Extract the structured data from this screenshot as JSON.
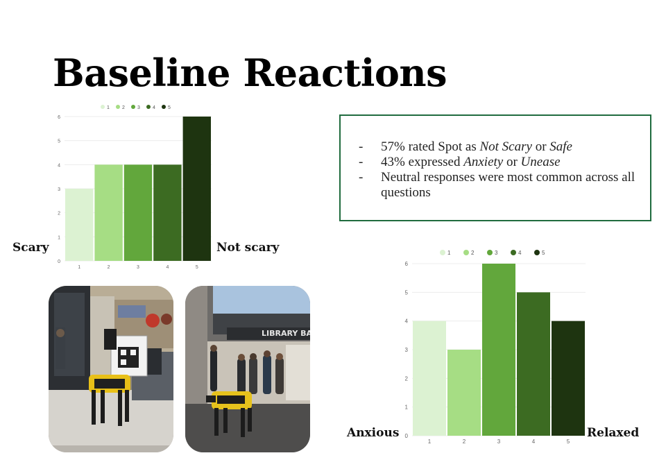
{
  "slide": {
    "title": "Baseline Reactions"
  },
  "chart_data": [
    {
      "type": "bar",
      "categories": [
        "1",
        "2",
        "3",
        "4",
        "5"
      ],
      "values": [
        3,
        4,
        4,
        4,
        6
      ],
      "legend": [
        "1",
        "2",
        "3",
        "4",
        "5"
      ],
      "legend_position": "top-center",
      "ylim": [
        0,
        6
      ],
      "yticks": [
        0,
        1,
        2,
        3,
        4,
        5,
        6
      ],
      "grid": true,
      "colors": [
        "#dcf2d2",
        "#a6dd84",
        "#62a73c",
        "#3c6b22",
        "#1e3410"
      ],
      "low_end_label": "Scary",
      "high_end_label": "Not scary"
    },
    {
      "type": "bar",
      "categories": [
        "1",
        "2",
        "3",
        "4",
        "5"
      ],
      "values": [
        4,
        3,
        6,
        5,
        4
      ],
      "legend": [
        "1",
        "2",
        "3",
        "4",
        "5"
      ],
      "legend_position": "top-center",
      "ylim": [
        0,
        6
      ],
      "yticks": [
        0,
        1,
        2,
        3,
        4,
        5,
        6
      ],
      "grid": true,
      "colors": [
        "#dcf2d2",
        "#a6dd84",
        "#62a73c",
        "#3c6b22",
        "#1e3410"
      ],
      "low_end_label": "Anxious",
      "high_end_label": "Relaxed"
    }
  ],
  "summary": {
    "border_color": "#1f6b3e",
    "bullets": [
      {
        "dash": "-",
        "parts": [
          {
            "text": "57% rated Spot as "
          },
          {
            "text": "Not Scary",
            "italic": true
          },
          {
            "text": " or "
          },
          {
            "text": "Safe",
            "italic": true
          }
        ]
      },
      {
        "dash": "-",
        "parts": [
          {
            "text": "43% expressed "
          },
          {
            "text": "Anxiety",
            "italic": true
          },
          {
            "text": " or "
          },
          {
            "text": "Unease",
            "italic": true
          }
        ]
      },
      {
        "dash": "-",
        "parts": [
          {
            "text": "Neutral responses were most common across all questions"
          }
        ]
      }
    ]
  },
  "photos": [
    {
      "name": "spot-robot-lab-photo",
      "icon": "robot-dog-photo"
    },
    {
      "name": "spot-robot-library-photo",
      "icon": "robot-dog-photo"
    }
  ]
}
